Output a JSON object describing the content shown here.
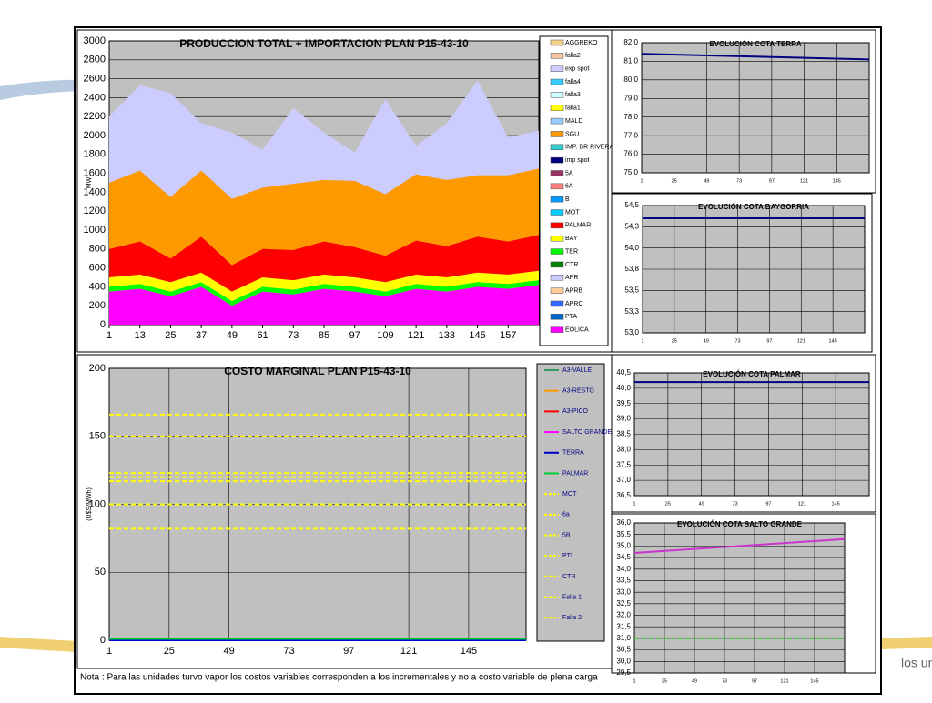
{
  "chart_data": [
    {
      "type": "area",
      "title": "PRODUCCION TOTAL + IMPORTACION PLAN   P15-43-10",
      "ylabel": "MW",
      "x": [
        1,
        13,
        25,
        37,
        49,
        61,
        73,
        85,
        97,
        109,
        121,
        133,
        145,
        157,
        169
      ],
      "xlim": [
        1,
        169
      ],
      "xticks": [
        1,
        13,
        25,
        37,
        49,
        61,
        73,
        85,
        97,
        109,
        121,
        133,
        145,
        157
      ],
      "ylim": [
        0,
        3000
      ],
      "yticks": [
        0,
        200,
        400,
        600,
        800,
        1000,
        1200,
        1400,
        1600,
        1800,
        2000,
        2200,
        2400,
        2600,
        2800,
        3000
      ],
      "grid": true,
      "series": [
        {
          "name": "AGGREKO",
          "color": "#f5d08c",
          "values": [
            0,
            0,
            0,
            0,
            0,
            0,
            0,
            0,
            0,
            0,
            0,
            0,
            0,
            0,
            0
          ]
        },
        {
          "name": "falla2",
          "color": "#f7c6a0",
          "values": [
            0,
            0,
            0,
            0,
            0,
            0,
            0,
            0,
            0,
            0,
            0,
            0,
            0,
            0,
            0
          ]
        },
        {
          "name": "exp spot",
          "color": "#ccccff",
          "values": [
            700,
            900,
            1100,
            500,
            700,
            400,
            800,
            500,
            300,
            1000,
            300,
            600,
            1000,
            400,
            400
          ]
        },
        {
          "name": "falla4",
          "color": "#33ccff",
          "values": [
            0,
            0,
            0,
            0,
            0,
            0,
            0,
            0,
            0,
            0,
            0,
            0,
            0,
            0,
            0
          ]
        },
        {
          "name": "falla3",
          "color": "#ccffff",
          "values": [
            0,
            0,
            0,
            0,
            0,
            0,
            0,
            0,
            0,
            0,
            0,
            0,
            0,
            0,
            0
          ]
        },
        {
          "name": "falla1",
          "color": "#ffff00",
          "values": [
            0,
            0,
            0,
            0,
            0,
            0,
            0,
            0,
            0,
            0,
            0,
            0,
            0,
            0,
            0
          ]
        },
        {
          "name": "MALD",
          "color": "#99ccff",
          "values": [
            0,
            0,
            0,
            0,
            0,
            0,
            0,
            0,
            0,
            0,
            0,
            0,
            0,
            0,
            0
          ]
        },
        {
          "name": "SGU",
          "color": "#ff9900",
          "values": [
            700,
            750,
            650,
            700,
            700,
            650,
            700,
            650,
            700,
            650,
            700,
            700,
            650,
            700,
            700
          ]
        },
        {
          "name": "IMP. BR RIVERA",
          "color": "#33cccc",
          "values": [
            0,
            0,
            0,
            0,
            0,
            0,
            0,
            0,
            0,
            0,
            0,
            0,
            0,
            0,
            0
          ]
        },
        {
          "name": "imp spot",
          "color": "#000080",
          "values": [
            0,
            0,
            0,
            0,
            0,
            0,
            0,
            0,
            0,
            0,
            0,
            0,
            0,
            0,
            0
          ]
        },
        {
          "name": "5A",
          "color": "#993366",
          "values": [
            0,
            0,
            0,
            0,
            0,
            0,
            0,
            0,
            0,
            0,
            0,
            0,
            0,
            0,
            0
          ]
        },
        {
          "name": "6A",
          "color": "#ff8080",
          "values": [
            0,
            0,
            0,
            0,
            0,
            0,
            0,
            0,
            0,
            0,
            0,
            0,
            0,
            0,
            0
          ]
        },
        {
          "name": "B",
          "color": "#0099ff",
          "values": [
            0,
            0,
            0,
            0,
            0,
            0,
            0,
            0,
            0,
            0,
            0,
            0,
            0,
            0,
            0
          ]
        },
        {
          "name": "MOT",
          "color": "#00ccff",
          "values": [
            0,
            0,
            0,
            0,
            0,
            0,
            0,
            0,
            0,
            0,
            0,
            0,
            0,
            0,
            0
          ]
        },
        {
          "name": "PALMAR",
          "color": "#ff0000",
          "values": [
            300,
            350,
            250,
            380,
            280,
            300,
            320,
            350,
            320,
            280,
            360,
            330,
            380,
            350,
            380
          ]
        },
        {
          "name": "BAY",
          "color": "#ffff00",
          "values": [
            100,
            100,
            100,
            100,
            100,
            100,
            100,
            100,
            100,
            100,
            100,
            100,
            100,
            100,
            100
          ]
        },
        {
          "name": "TER",
          "color": "#00ff00",
          "values": [
            50,
            50,
            50,
            50,
            50,
            50,
            50,
            50,
            50,
            50,
            50,
            50,
            50,
            50,
            50
          ]
        },
        {
          "name": "CTR",
          "color": "#008000",
          "values": [
            0,
            0,
            0,
            0,
            0,
            0,
            0,
            0,
            0,
            0,
            0,
            0,
            0,
            0,
            0
          ]
        },
        {
          "name": "APR",
          "color": "#ccccff",
          "values": [
            0,
            0,
            0,
            0,
            0,
            0,
            0,
            0,
            0,
            0,
            0,
            0,
            0,
            0,
            0
          ]
        },
        {
          "name": "APRB",
          "color": "#ffcc99",
          "values": [
            0,
            0,
            0,
            0,
            0,
            0,
            0,
            0,
            0,
            0,
            0,
            0,
            0,
            0,
            0
          ]
        },
        {
          "name": "APRC",
          "color": "#3366ff",
          "values": [
            0,
            0,
            0,
            0,
            0,
            0,
            0,
            0,
            0,
            0,
            0,
            0,
            0,
            0,
            0
          ]
        },
        {
          "name": "PTA",
          "color": "#0066cc",
          "values": [
            0,
            0,
            0,
            0,
            0,
            0,
            0,
            0,
            0,
            0,
            0,
            0,
            0,
            0,
            0
          ]
        },
        {
          "name": "EOLICA",
          "color": "#ff00ff",
          "values": [
            350,
            380,
            300,
            400,
            200,
            350,
            320,
            380,
            350,
            300,
            380,
            350,
            400,
            380,
            420
          ]
        }
      ]
    },
    {
      "type": "line",
      "title": "EVOLUCIÓN COTA TERRA",
      "x": [
        1,
        169
      ],
      "xlim": [
        1,
        169
      ],
      "xticks": [
        1,
        25,
        49,
        73,
        97,
        121,
        145
      ],
      "ylim": [
        75,
        82
      ],
      "yticks": [
        {
          "value": 75,
          "label": "75,0"
        },
        {
          "value": 76,
          "label": "76,0"
        },
        {
          "value": 77,
          "label": "77,0"
        },
        {
          "value": 78,
          "label": "78,0"
        },
        {
          "value": 79,
          "label": "79,0"
        },
        {
          "value": 80,
          "label": "80,0"
        },
        {
          "value": 81,
          "label": "81,0"
        },
        {
          "value": 82,
          "label": "82,0"
        }
      ],
      "grid": true,
      "series": [
        {
          "color": "#000080",
          "values": [
            81.4,
            81.1
          ]
        }
      ]
    },
    {
      "type": "line",
      "title": "EVOLUCIÓN COTA BAYGORRIA",
      "x": [
        1,
        169
      ],
      "xlim": [
        1,
        169
      ],
      "xticks": [
        1,
        25,
        49,
        73,
        97,
        121,
        145
      ],
      "ylim": [
        53,
        54.5
      ],
      "yticks": [
        {
          "value": 53,
          "label": "53,0"
        },
        {
          "value": 53.25,
          "label": "53,3"
        },
        {
          "value": 53.5,
          "label": "53,5"
        },
        {
          "value": 53.75,
          "label": "53,8"
        },
        {
          "value": 54,
          "label": "54,0"
        },
        {
          "value": 54.25,
          "label": "54,3"
        },
        {
          "value": 54.5,
          "label": "54,5"
        }
      ],
      "grid": true,
      "series": [
        {
          "color": "#000080",
          "values": [
            54.35,
            54.35
          ]
        }
      ]
    },
    {
      "type": "line",
      "title": "COSTO MARGINAL PLAN    P15-43-10",
      "ylabel": "(U$S/MWh)",
      "x": [
        1,
        168
      ],
      "xlim": [
        1,
        168
      ],
      "xticks": [
        1,
        25,
        49,
        73,
        97,
        121,
        145
      ],
      "ylim": [
        0,
        200
      ],
      "yticks": [
        0,
        50,
        100,
        150,
        200
      ],
      "grid": true,
      "series": [
        {
          "name": "A3-VALLE",
          "color": "#339966",
          "values": [
            0,
            0
          ]
        },
        {
          "name": "A3-RESTO",
          "color": "#ff9900",
          "values": [
            0,
            0
          ]
        },
        {
          "name": "A3-PICO",
          "color": "#ff0000",
          "values": [
            0,
            0
          ]
        },
        {
          "name": "SALTO GRANDE",
          "color": "#ff00ff",
          "values": [
            0,
            0
          ]
        },
        {
          "name": "TERRA",
          "color": "#0000cc",
          "values": [
            0,
            0
          ]
        },
        {
          "name": "PALMAR",
          "color": "#00cc33",
          "values": [
            1,
            1
          ]
        },
        {
          "name": "MOT",
          "color": "#ffff00",
          "dash": true,
          "values": [
            166,
            166
          ]
        },
        {
          "name": "6a",
          "color": "#ffff00",
          "dash": true,
          "values": [
            150,
            150
          ]
        },
        {
          "name": "5B",
          "color": "#ffff00",
          "dash": true,
          "values": [
            123,
            123
          ]
        },
        {
          "name": "PTI",
          "color": "#ffff00",
          "dash": true,
          "values": [
            120,
            120
          ]
        },
        {
          "name": "CTR",
          "color": "#ffff00",
          "dash": true,
          "values": [
            117,
            117
          ]
        },
        {
          "name": "Falla 1",
          "color": "#ffff00",
          "dash": true,
          "values": [
            100,
            100
          ]
        },
        {
          "name": "Falla 2",
          "color": "#ffff00",
          "dash": true,
          "values": [
            82,
            82
          ]
        }
      ]
    },
    {
      "type": "line",
      "title": "EVOLUCIÓN COTA PALMAR",
      "x": [
        1,
        169
      ],
      "xlim": [
        1,
        169
      ],
      "xticks": [
        1,
        25,
        49,
        73,
        97,
        121,
        145
      ],
      "ylim": [
        36.5,
        40.5
      ],
      "yticks": [
        {
          "value": 36.5,
          "label": "36,5"
        },
        {
          "value": 37,
          "label": "37,0"
        },
        {
          "value": 37.5,
          "label": "37,5"
        },
        {
          "value": 38,
          "label": "38,0"
        },
        {
          "value": 38.5,
          "label": "38,5"
        },
        {
          "value": 39,
          "label": "39,0"
        },
        {
          "value": 39.5,
          "label": "39,5"
        },
        {
          "value": 40,
          "label": "40,0"
        },
        {
          "value": 40.5,
          "label": "40,5"
        }
      ],
      "grid": true,
      "series": [
        {
          "color": "#000080",
          "values": [
            40.2,
            40.2
          ]
        }
      ]
    },
    {
      "type": "line",
      "title": "EVOLUCIÓN COTA SALTO GRANDE",
      "x": [
        1,
        169
      ],
      "xlim": [
        1,
        169
      ],
      "xticks": [
        1,
        25,
        49,
        73,
        97,
        121,
        145
      ],
      "ylim": [
        29.5,
        36
      ],
      "yticks": [
        {
          "value": 29.5,
          "label": "29,5"
        },
        {
          "value": 30,
          "label": "30,0"
        },
        {
          "value": 30.5,
          "label": "30,5"
        },
        {
          "value": 31,
          "label": "31,0"
        },
        {
          "value": 31.5,
          "label": "31,5"
        },
        {
          "value": 32,
          "label": "32,0"
        },
        {
          "value": 32.5,
          "label": "32,5"
        },
        {
          "value": 33,
          "label": "33,0"
        },
        {
          "value": 33.5,
          "label": "33,5"
        },
        {
          "value": 34,
          "label": "34,0"
        },
        {
          "value": 34.5,
          "label": "34,5"
        },
        {
          "value": 35,
          "label": "35,0"
        },
        {
          "value": 35.5,
          "label": "35,5"
        },
        {
          "value": 36,
          "label": "36,0"
        }
      ],
      "grid": true,
      "series": [
        {
          "color": "#cc33cc",
          "values": [
            34.7,
            35.3
          ]
        },
        {
          "color": "#33cc33",
          "dash": true,
          "values": [
            31,
            31
          ]
        }
      ]
    }
  ],
  "note": "Nota : Para las unidades turvo vapor los costos variables corresponden a los incrementales y no a costo variable de plena carga"
}
